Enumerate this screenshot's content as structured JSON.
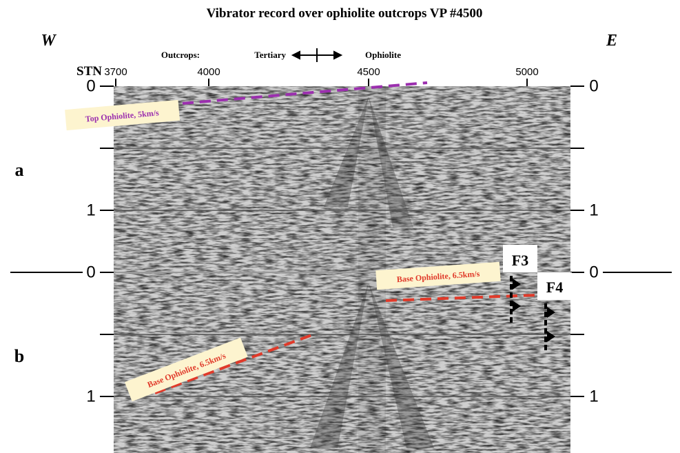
{
  "title": "Vibrator record over ophiolite outcrops VP #4500",
  "directions": {
    "west": "W",
    "east": "E"
  },
  "outcrops": {
    "label": "Outcrops:",
    "left": "Tertiary",
    "right": "Ophiolite"
  },
  "station_axis": {
    "label": "STN",
    "ticks": [
      "3700",
      "4000",
      "4500",
      "5000"
    ]
  },
  "time_axis_left": [
    "0",
    "1",
    "0",
    "1"
  ],
  "time_axis_right": [
    "0",
    "1",
    "0",
    "1"
  ],
  "panels": [
    "a",
    "b"
  ],
  "annotations": {
    "top_ophiolite": "Top Ophiolite, 5km/s",
    "base_ophiolite_left": "Base Ophiolite, 6.5km/s",
    "base_ophiolite_right": "Base Ophiolite, 6.5km/s"
  },
  "faults": [
    "F3",
    "F4"
  ]
}
